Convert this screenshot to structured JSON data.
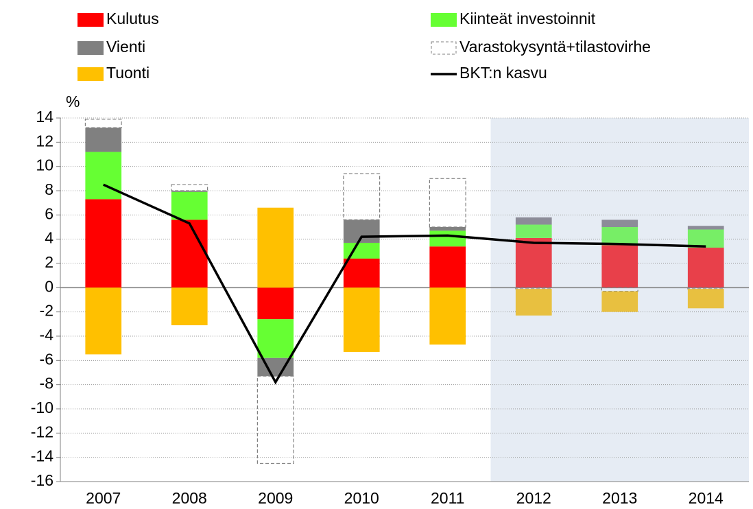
{
  "chart_data": {
    "type": "bar",
    "stacked": true,
    "y_label": "%",
    "categories": [
      "2007",
      "2008",
      "2009",
      "2010",
      "2011",
      "2012",
      "2013",
      "2014"
    ],
    "shade_from": "2012",
    "shade_color": "#e6ecf4",
    "ylim": [
      -16,
      14
    ],
    "yticks": [
      -16,
      -14,
      -12,
      -10,
      -8,
      -6,
      -4,
      -2,
      0,
      2,
      4,
      6,
      8,
      10,
      12,
      14
    ],
    "grid": true,
    "series": [
      {
        "name": "Kulutus",
        "color": "#ff0000",
        "forecast_color": "#e8404a",
        "values": [
          7.3,
          5.6,
          -2.6,
          2.4,
          3.4,
          4.1,
          3.5,
          3.3
        ]
      },
      {
        "name": "Kiinteät investoinnit",
        "color": "#66ff33",
        "forecast_color": "#77ee66",
        "values": [
          3.9,
          2.3,
          -3.2,
          1.3,
          1.3,
          1.1,
          1.5,
          1.5
        ]
      },
      {
        "name": "Vienti",
        "color": "#808080",
        "forecast_color": "#8c8c98",
        "values": [
          2.0,
          0.1,
          -1.5,
          1.9,
          0.3,
          0.6,
          0.6,
          0.3
        ]
      },
      {
        "name": "Varastokysyntä+tilastovirhe",
        "color": "#808080",
        "style": "dashed",
        "values": [
          0.7,
          0.5,
          -7.2,
          3.8,
          4.0,
          -0.1,
          -0.3,
          -0.1
        ]
      },
      {
        "name": "Tuonti",
        "color": "#ffc000",
        "forecast_color": "#e8c040",
        "values": [
          -5.5,
          -3.1,
          6.6,
          -5.3,
          -4.7,
          -2.2,
          -1.7,
          -1.6
        ]
      },
      {
        "name": "BKT:n kasvu",
        "type": "line",
        "color": "#000000",
        "values": [
          8.5,
          5.3,
          -7.8,
          4.2,
          4.3,
          3.7,
          3.6,
          3.4
        ]
      }
    ]
  }
}
